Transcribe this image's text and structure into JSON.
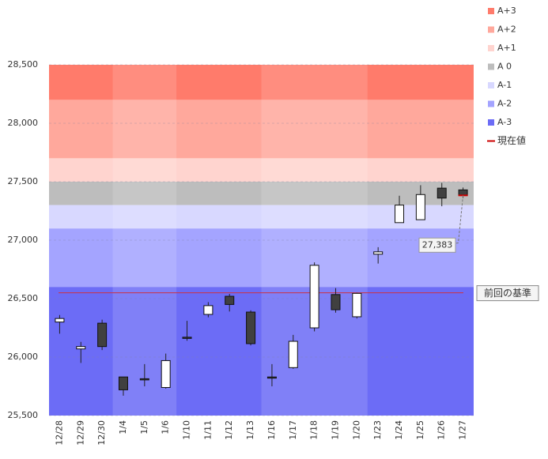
{
  "chart_data": {
    "type": "candlestick",
    "categories": [
      "12/28",
      "12/29",
      "12/30",
      "1/4",
      "1/5",
      "1/6",
      "1/10",
      "1/11",
      "1/12",
      "1/13",
      "1/16",
      "1/17",
      "1/18",
      "1/19",
      "1/20",
      "1/23",
      "1/24",
      "1/25",
      "1/26",
      "1/27"
    ],
    "open": [
      26300,
      26070,
      26290,
      25830,
      25815,
      25740,
      26170,
      26365,
      26520,
      26385,
      25830,
      25910,
      26250,
      26535,
      26345,
      26880,
      27150,
      27175,
      27445,
      27430
    ],
    "high": [
      26360,
      26130,
      26320,
      25830,
      25940,
      26030,
      26310,
      26470,
      26540,
      26400,
      25940,
      26190,
      26810,
      26590,
      26550,
      26940,
      27380,
      27470,
      27490,
      27450
    ],
    "low": [
      26200,
      25950,
      26060,
      25670,
      25750,
      25730,
      26140,
      26340,
      26390,
      26100,
      25750,
      25900,
      26220,
      26380,
      26330,
      26800,
      27150,
      27175,
      27290,
      27360
    ],
    "close": [
      26330,
      26090,
      26090,
      25720,
      25810,
      25970,
      26160,
      26440,
      26450,
      26115,
      25820,
      26135,
      26785,
      26405,
      26545,
      26900,
      27300,
      27390,
      27360,
      27383
    ],
    "up_color": "#ffffff",
    "down_color": "#404040",
    "bands": [
      {
        "name": "A+3",
        "color": "#ff7b6b",
        "range": [
          28200,
          28500
        ]
      },
      {
        "name": "A+2",
        "color": "#ffa89c",
        "range": [
          27700,
          28200
        ]
      },
      {
        "name": "A+1",
        "color": "#ffd4cf",
        "range": [
          27500,
          27700
        ]
      },
      {
        "name": "A 0",
        "color": "#bdbdbd",
        "range": [
          27300,
          27500
        ]
      },
      {
        "name": "A-1",
        "color": "#d8d8ff",
        "range": [
          27100,
          27300
        ]
      },
      {
        "name": "A-2",
        "color": "#a4a4ff",
        "range": [
          26600,
          27100
        ]
      },
      {
        "name": "A-3",
        "color": "#6c6cf6",
        "range": [
          25500,
          26600
        ]
      }
    ],
    "current": {
      "name": "現在値",
      "color": "#cc0000",
      "value": 27383,
      "label": "27,383"
    },
    "reference": {
      "label": "前回の基準",
      "value": 26550,
      "color": "#cc3344"
    },
    "ylim": [
      25500,
      28500
    ],
    "yticks": [
      {
        "value": 25500,
        "label": "25,500"
      },
      {
        "value": 26000,
        "label": "26,000"
      },
      {
        "value": 26500,
        "label": "26,500"
      },
      {
        "value": 27000,
        "label": "27,000"
      },
      {
        "value": 27500,
        "label": "27,500"
      },
      {
        "value": 28000,
        "label": "28,000"
      },
      {
        "value": 28500,
        "label": "28,500"
      }
    ],
    "grid": true
  }
}
